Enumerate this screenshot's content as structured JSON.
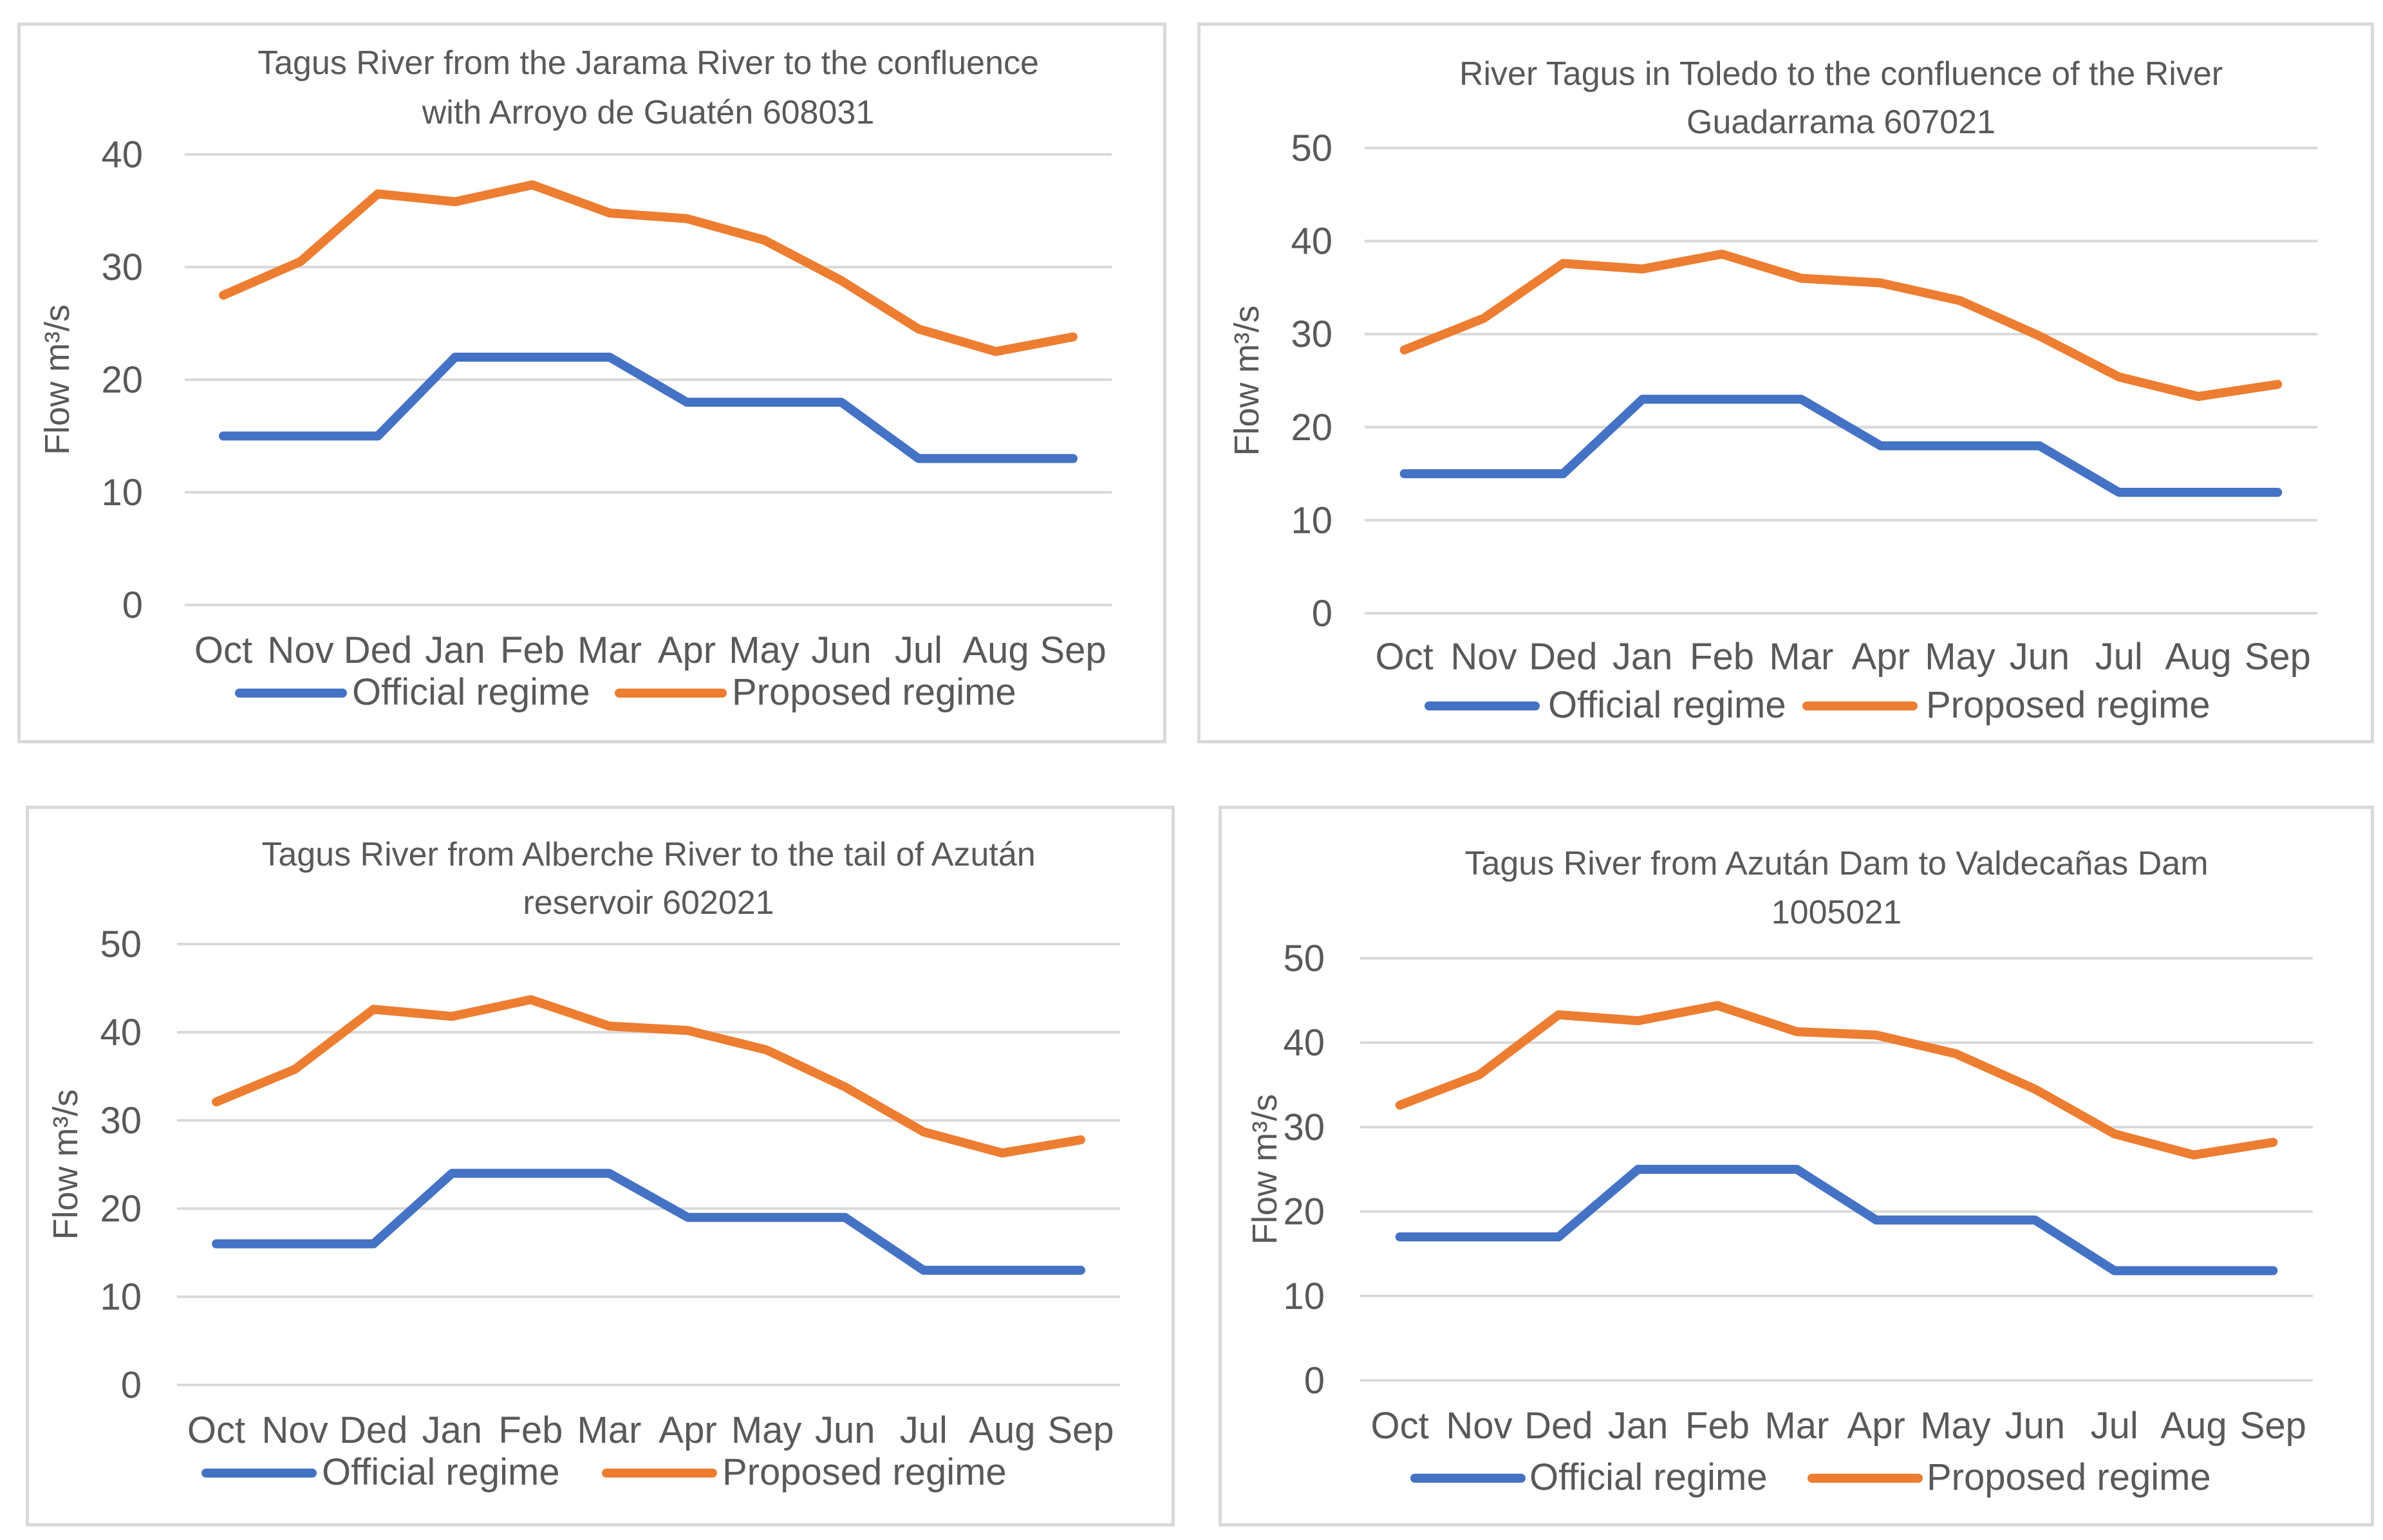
{
  "chart_data": [
    {
      "type": "line",
      "title_lines": [
        "Tagus River from the Jarama River to the confluence",
        "with Arroyo de Guatén 608031"
      ],
      "ylabel": "Flow m³/s",
      "ylim": [
        0,
        40
      ],
      "yticks": [
        "0",
        "10",
        "20",
        "30",
        "40"
      ],
      "categories": [
        "Oct",
        "Nov",
        "Ded",
        "Jan",
        "Feb",
        "Mar",
        "Apr",
        "May",
        "Jun",
        "Jul",
        "Aug",
        "Sep"
      ],
      "series": [
        {
          "name": "Official regime",
          "color": "#4472c4",
          "values": [
            15,
            15,
            15,
            22,
            22,
            22,
            18,
            18,
            18,
            13,
            13,
            13
          ]
        },
        {
          "name": "Proposed regime",
          "color": "#ed7d31",
          "values": [
            27.5,
            30.5,
            36.5,
            35.8,
            37.3,
            34.8,
            34.3,
            32.4,
            28.8,
            24.5,
            22.5,
            23.8
          ]
        }
      ]
    },
    {
      "type": "line",
      "title_lines": [
        "River Tagus in Toledo to the confluence of the River",
        "Guadarrama  607021"
      ],
      "ylabel": "Flow m³/s",
      "ylim": [
        0,
        50
      ],
      "yticks": [
        "0",
        "10",
        "20",
        "30",
        "40",
        "50"
      ],
      "categories": [
        "Oct",
        "Nov",
        "Ded",
        "Jan",
        "Feb",
        "Mar",
        "Apr",
        "May",
        "Jun",
        "Jul",
        "Aug",
        "Sep"
      ],
      "series": [
        {
          "name": "Official regime",
          "color": "#4472c4",
          "values": [
            15,
            15,
            15,
            23,
            23,
            23,
            18,
            18,
            18,
            13,
            13,
            13
          ]
        },
        {
          "name": "Proposed regime",
          "color": "#ed7d31",
          "values": [
            28.3,
            31.7,
            37.6,
            37.0,
            38.6,
            36.0,
            35.5,
            33.6,
            29.8,
            25.4,
            23.3,
            24.6
          ]
        }
      ]
    },
    {
      "type": "line",
      "title_lines": [
        "Tagus River from Alberche River to the tail of Azután",
        "reservoir 602021"
      ],
      "ylabel": "Flow m³/s",
      "ylim": [
        0,
        50
      ],
      "yticks": [
        "0",
        "10",
        "20",
        "30",
        "40",
        "50"
      ],
      "categories": [
        "Oct",
        "Nov",
        "Ded",
        "Jan",
        "Feb",
        "Mar",
        "Apr",
        "May",
        "Jun",
        "Jul",
        "Aug",
        "Sep"
      ],
      "series": [
        {
          "name": "Official regime",
          "color": "#4472c4",
          "values": [
            16,
            16,
            16,
            24,
            24,
            24,
            19,
            19,
            19,
            13,
            13,
            13
          ]
        },
        {
          "name": "Proposed regime",
          "color": "#ed7d31",
          "values": [
            32.1,
            35.8,
            42.6,
            41.8,
            43.7,
            40.7,
            40.2,
            38.0,
            33.8,
            28.7,
            26.3,
            27.8
          ]
        }
      ]
    },
    {
      "type": "line",
      "title_lines": [
        "Tagus River from Azután Dam to Valdecañas Dam",
        "1005021"
      ],
      "ylabel": "Flow m³/s",
      "ylim": [
        0,
        50
      ],
      "yticks": [
        "0",
        "10",
        "20",
        "30",
        "40",
        "50"
      ],
      "categories": [
        "Oct",
        "Nov",
        "Ded",
        "Jan",
        "Feb",
        "Mar",
        "Apr",
        "May",
        "Jun",
        "Jul",
        "Aug",
        "Sep"
      ],
      "series": [
        {
          "name": "Official regime",
          "color": "#4472c4",
          "values": [
            17,
            17,
            17,
            25,
            25,
            25,
            19,
            19,
            19,
            13,
            13,
            13
          ]
        },
        {
          "name": "Proposed regime",
          "color": "#ed7d31",
          "values": [
            32.6,
            36.2,
            43.3,
            42.6,
            44.4,
            41.3,
            40.9,
            38.7,
            34.5,
            29.2,
            26.7,
            28.2
          ]
        }
      ]
    }
  ]
}
